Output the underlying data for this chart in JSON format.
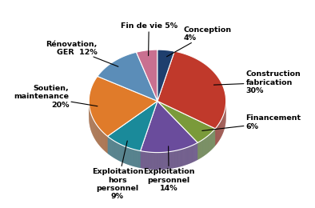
{
  "labels": [
    "Conception\n4%",
    "Construction\nfabrication\n30%",
    "Financement\n6%",
    "Exploitation\npersonnel\n14%",
    "Exploitation\nhors\npersonnel\n9%",
    "Soutien,\nmaintenance\n20%",
    "Rénovation,\nGER  12%",
    "Fin de vie 5%"
  ],
  "values": [
    4,
    30,
    6,
    14,
    9,
    20,
    12,
    5
  ],
  "colors": [
    "#1F3F6E",
    "#C0392B",
    "#7A9A3A",
    "#6A4C9C",
    "#1A8A9A",
    "#E07B2A",
    "#5B8DB8",
    "#C97090"
  ],
  "dark_colors": [
    "#0F1F40",
    "#7A1A10",
    "#3A5A1A",
    "#3A2060",
    "#0A4A5A",
    "#8A4010",
    "#2A5A80",
    "#904060"
  ],
  "startangle": 90,
  "figsize": [
    3.94,
    2.6
  ],
  "dpi": 100,
  "depth": 0.12,
  "label_fontsize": 6.8
}
